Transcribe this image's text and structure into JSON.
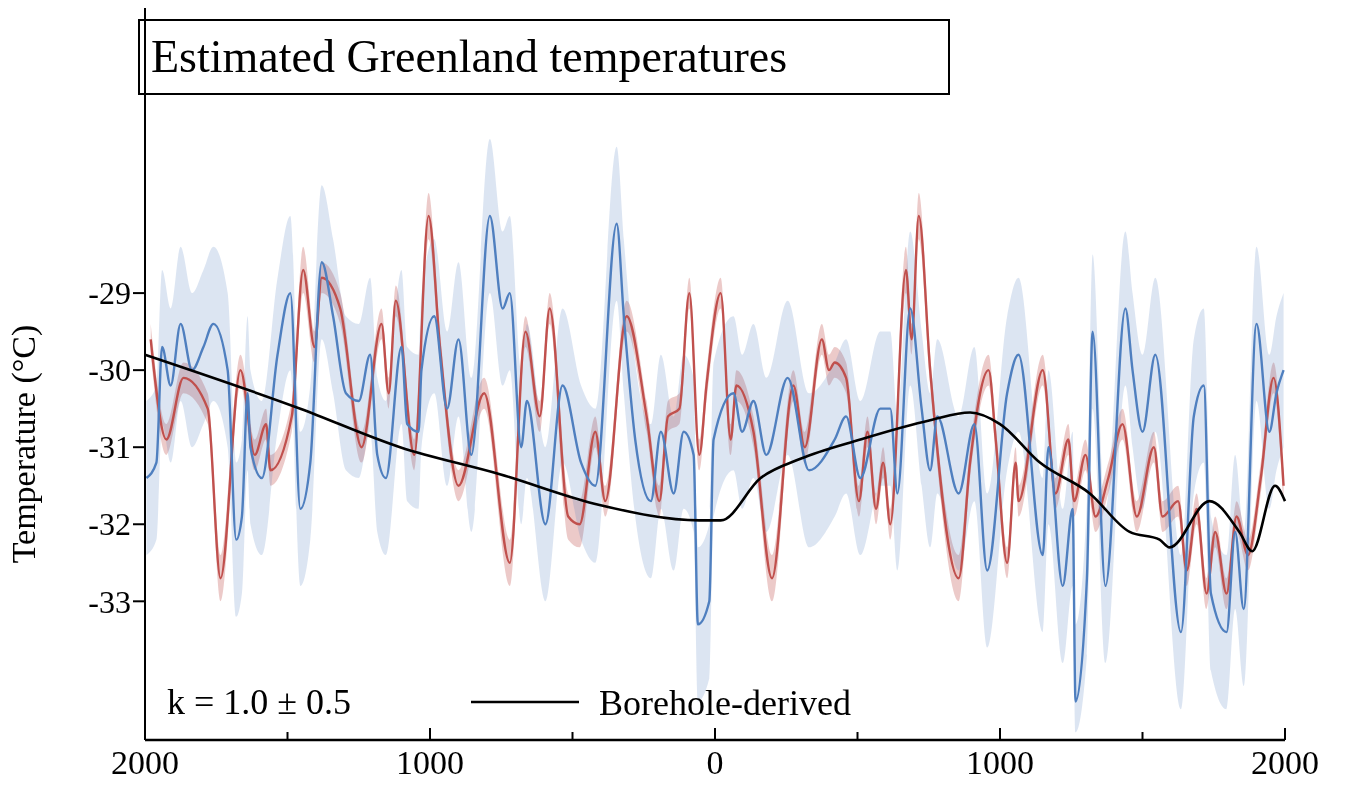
{
  "chart_data": {
    "type": "line",
    "title": "Estimated Greenland temperatures",
    "ylabel": "Temperature (°C)",
    "annotations": [
      "k = 1.0 ± 0.5"
    ],
    "xlim": [
      -2000,
      2000
    ],
    "xticks": [
      {
        "value": -2000,
        "label": "2000"
      },
      {
        "value": -1500,
        "label": null
      },
      {
        "value": -1000,
        "label": "1000"
      },
      {
        "value": -500,
        "label": null
      },
      {
        "value": 0,
        "label": "0"
      },
      {
        "value": 500,
        "label": null
      },
      {
        "value": 1000,
        "label": "1000"
      },
      {
        "value": 1500,
        "label": null
      },
      {
        "value": 2000,
        "label": "2000"
      }
    ],
    "ylim": [
      -34.8,
      -25.3
    ],
    "yticks": [
      -29,
      -30,
      -31,
      -32,
      -33
    ],
    "legend": "bottom",
    "grid": false,
    "series": [
      {
        "color": "#c0504d",
        "x": [
          -1980,
          -1925,
          -1865,
          -1780,
          -1735,
          -1665,
          -1615,
          -1575,
          -1560,
          -1485,
          -1445,
          -1405,
          -1380,
          -1315,
          -1240,
          -1170,
          -1145,
          -1120,
          -1055,
          -1005,
          -965,
          -900,
          -810,
          -720,
          -665,
          -615,
          -580,
          -515,
          -475,
          -420,
          -385,
          -310,
          -240,
          -195,
          -165,
          -125,
          -90,
          -55,
          -30,
          20,
          55,
          75,
          135,
          200,
          275,
          315,
          375,
          400,
          420,
          460,
          505,
          535,
          565,
          590,
          615,
          670,
          690,
          715,
          755,
          855,
          895,
          960,
          985,
          1025,
          1055,
          1065,
          1150,
          1195,
          1240,
          1260,
          1300,
          1335,
          1380,
          1430,
          1480,
          1540,
          1570,
          1625,
          1655,
          1690,
          1725,
          1755,
          1795,
          1830,
          1870,
          1915,
          1960,
          1995
        ],
        "values": [
          -29.6,
          -30.9,
          -30.1,
          -30.5,
          -32.7,
          -30.0,
          -31.1,
          -30.7,
          -31.3,
          -30.6,
          -28.7,
          -29.7,
          -28.8,
          -29.2,
          -31.0,
          -29.4,
          -30.3,
          -29.1,
          -31.1,
          -28.0,
          -29.7,
          -31.5,
          -30.3,
          -32.5,
          -29.5,
          -30.6,
          -29.2,
          -31.9,
          -32.0,
          -30.8,
          -31.7,
          -29.3,
          -30.6,
          -31.7,
          -30.6,
          -30.5,
          -29.0,
          -31.1,
          -30.2,
          -29.0,
          -30.9,
          -30.2,
          -30.8,
          -32.7,
          -30.2,
          -31.0,
          -29.6,
          -30.0,
          -29.9,
          -30.1,
          -31.7,
          -30.8,
          -31.8,
          -31.2,
          -32.0,
          -28.7,
          -29.6,
          -28.0,
          -30.0,
          -32.7,
          -31.2,
          -30.0,
          -30.9,
          -32.5,
          -31.2,
          -31.7,
          -30.0,
          -31.6,
          -30.9,
          -31.7,
          -31.1,
          -31.9,
          -31.4,
          -30.7,
          -31.9,
          -31.0,
          -31.9,
          -31.7,
          -32.6,
          -31.8,
          -32.9,
          -32.1,
          -32.9,
          -31.9,
          -32.4,
          -31.4,
          -30.1,
          -31.5
        ],
        "lower": [
          -29.8,
          -31.1,
          -30.3,
          -30.7,
          -33.0,
          -30.2,
          -31.3,
          -30.9,
          -31.5,
          -30.8,
          -29.0,
          -29.9,
          -29.0,
          -29.4,
          -31.2,
          -29.6,
          -30.5,
          -29.3,
          -31.3,
          -28.3,
          -29.9,
          -31.7,
          -30.5,
          -32.8,
          -29.7,
          -30.8,
          -29.4,
          -32.2,
          -32.3,
          -31.0,
          -31.9,
          -29.5,
          -30.8,
          -31.9,
          -30.8,
          -30.7,
          -29.2,
          -31.3,
          -30.4,
          -29.2,
          -31.1,
          -30.4,
          -31.0,
          -33.0,
          -30.4,
          -31.2,
          -29.8,
          -30.2,
          -30.1,
          -30.3,
          -31.9,
          -31.0,
          -32.0,
          -31.4,
          -32.2,
          -29.0,
          -29.8,
          -28.3,
          -30.2,
          -33.0,
          -31.4,
          -30.2,
          -31.1,
          -32.7,
          -31.4,
          -31.9,
          -30.2,
          -31.8,
          -31.1,
          -31.9,
          -31.3,
          -32.1,
          -31.6,
          -30.9,
          -32.1,
          -31.2,
          -32.1,
          -31.9,
          -32.8,
          -32.0,
          -33.1,
          -32.3,
          -33.1,
          -32.1,
          -32.6,
          -31.6,
          -30.3,
          -31.7
        ],
        "upper": [
          -29.4,
          -30.7,
          -29.9,
          -30.3,
          -32.4,
          -29.8,
          -30.9,
          -30.5,
          -31.1,
          -30.4,
          -28.4,
          -29.5,
          -28.6,
          -29.0,
          -30.8,
          -29.2,
          -30.1,
          -28.9,
          -30.9,
          -27.7,
          -29.5,
          -31.3,
          -30.1,
          -32.2,
          -29.3,
          -30.4,
          -29.0,
          -31.6,
          -31.7,
          -30.6,
          -31.5,
          -29.1,
          -30.4,
          -31.5,
          -30.4,
          -30.3,
          -28.8,
          -30.9,
          -30.0,
          -28.8,
          -30.7,
          -30.0,
          -30.6,
          -32.4,
          -30.0,
          -30.8,
          -29.4,
          -29.8,
          -29.7,
          -29.9,
          -31.5,
          -30.6,
          -31.6,
          -31.0,
          -31.8,
          -28.4,
          -29.4,
          -27.7,
          -29.8,
          -32.4,
          -31.0,
          -29.8,
          -30.7,
          -32.3,
          -31.0,
          -31.5,
          -29.8,
          -31.4,
          -30.7,
          -31.5,
          -30.9,
          -31.7,
          -31.2,
          -30.5,
          -31.7,
          -30.8,
          -31.7,
          -31.5,
          -32.4,
          -31.6,
          -32.7,
          -31.9,
          -32.7,
          -31.7,
          -32.2,
          -31.2,
          -29.9,
          -31.3
        ]
      },
      {
        "color": "#4f7fbf",
        "x": [
          -1995,
          -1960,
          -1940,
          -1910,
          -1875,
          -1835,
          -1795,
          -1760,
          -1710,
          -1680,
          -1660,
          -1640,
          -1630,
          -1590,
          -1535,
          -1490,
          -1455,
          -1420,
          -1380,
          -1340,
          -1295,
          -1250,
          -1210,
          -1185,
          -1155,
          -1100,
          -1080,
          -1040,
          -1030,
          -985,
          -940,
          -900,
          -855,
          -790,
          -745,
          -720,
          -680,
          -660,
          -595,
          -535,
          -470,
          -420,
          -345,
          -320,
          -280,
          -225,
          -190,
          -145,
          -110,
          -75,
          -60,
          -20,
          -5,
          65,
          95,
          135,
          180,
          255,
          330,
          420,
          460,
          510,
          580,
          615,
          640,
          685,
          725,
          755,
          780,
          855,
          910,
          955,
          1025,
          1065,
          1150,
          1170,
          1220,
          1255,
          1265,
          1305,
          1325,
          1370,
          1440,
          1465,
          1500,
          1545,
          1635,
          1680,
          1715,
          1740,
          1795,
          1825,
          1855,
          1900,
          1945,
          1970,
          1995
        ],
        "values": [
          -31.4,
          -31.2,
          -29.7,
          -30.2,
          -29.4,
          -30.0,
          -29.7,
          -29.4,
          -30.0,
          -32.2,
          -31.9,
          -30.3,
          -31.0,
          -31.4,
          -29.8,
          -29.0,
          -31.8,
          -31.2,
          -28.6,
          -29.3,
          -30.3,
          -30.4,
          -29.8,
          -31.1,
          -31.4,
          -29.7,
          -30.7,
          -30.8,
          -30.0,
          -29.3,
          -30.5,
          -29.6,
          -31.1,
          -28.0,
          -29.2,
          -29.0,
          -31.0,
          -30.4,
          -32.0,
          -30.2,
          -31.2,
          -31.5,
          -28.1,
          -29.3,
          -30.9,
          -31.7,
          -30.8,
          -31.6,
          -30.8,
          -31.1,
          -33.3,
          -33.0,
          -30.9,
          -30.3,
          -30.8,
          -30.4,
          -31.1,
          -30.1,
          -31.3,
          -30.9,
          -30.6,
          -31.4,
          -30.5,
          -30.5,
          -31.6,
          -29.2,
          -30.5,
          -31.3,
          -30.6,
          -31.6,
          -30.7,
          -32.6,
          -30.3,
          -29.8,
          -32.4,
          -31.0,
          -32.8,
          -31.8,
          -34.3,
          -32.7,
          -29.5,
          -32.8,
          -29.2,
          -30.0,
          -30.8,
          -29.8,
          -33.4,
          -30.6,
          -30.2,
          -32.9,
          -33.4,
          -32.1,
          -33.1,
          -29.4,
          -30.8,
          -30.3,
          -30.0
        ],
        "lower": [
          -32.4,
          -32.2,
          -30.7,
          -31.2,
          -30.4,
          -31.0,
          -30.7,
          -30.4,
          -31.0,
          -33.2,
          -32.9,
          -31.3,
          -32.0,
          -32.4,
          -30.8,
          -30.0,
          -32.8,
          -32.2,
          -29.6,
          -30.3,
          -31.3,
          -31.4,
          -30.8,
          -32.1,
          -32.4,
          -30.7,
          -31.7,
          -31.8,
          -31.0,
          -30.3,
          -31.5,
          -30.6,
          -32.1,
          -29.0,
          -30.2,
          -30.0,
          -32.0,
          -31.4,
          -33.0,
          -31.2,
          -32.2,
          -32.5,
          -29.1,
          -30.3,
          -31.9,
          -32.7,
          -31.8,
          -32.6,
          -31.8,
          -32.1,
          -34.3,
          -34.0,
          -31.9,
          -31.3,
          -31.8,
          -31.4,
          -32.1,
          -31.1,
          -32.3,
          -31.9,
          -31.6,
          -32.4,
          -31.5,
          -31.5,
          -32.6,
          -30.2,
          -31.5,
          -32.3,
          -31.6,
          -32.6,
          -31.7,
          -33.6,
          -31.3,
          -30.8,
          -33.4,
          -32.0,
          -33.8,
          -32.8,
          -34.7,
          -33.7,
          -30.5,
          -33.8,
          -30.2,
          -31.0,
          -31.8,
          -30.8,
          -34.4,
          -31.6,
          -31.2,
          -33.9,
          -34.4,
          -33.1,
          -34.1,
          -30.4,
          -31.8,
          -31.3,
          -31.0
        ],
        "upper": [
          -30.4,
          -30.2,
          -28.7,
          -29.2,
          -28.4,
          -29.0,
          -28.7,
          -28.4,
          -29.0,
          -31.2,
          -30.9,
          -29.3,
          -30.0,
          -30.4,
          -28.8,
          -28.0,
          -30.8,
          -30.2,
          -27.6,
          -28.3,
          -29.3,
          -29.4,
          -28.8,
          -30.1,
          -30.4,
          -28.7,
          -29.7,
          -29.8,
          -29.0,
          -28.3,
          -29.5,
          -28.6,
          -30.1,
          -27.0,
          -28.2,
          -28.0,
          -30.0,
          -29.4,
          -31.0,
          -29.2,
          -30.2,
          -30.5,
          -27.1,
          -28.3,
          -29.9,
          -30.7,
          -29.8,
          -30.6,
          -29.8,
          -30.1,
          -32.3,
          -32.0,
          -29.9,
          -29.3,
          -29.8,
          -29.4,
          -30.1,
          -29.1,
          -30.3,
          -29.9,
          -29.6,
          -30.4,
          -29.5,
          -29.5,
          -30.6,
          -28.2,
          -29.5,
          -30.3,
          -29.6,
          -30.6,
          -29.7,
          -31.6,
          -29.3,
          -28.8,
          -31.4,
          -30.0,
          -31.8,
          -30.8,
          -33.3,
          -31.7,
          -28.5,
          -31.8,
          -28.2,
          -29.0,
          -29.8,
          -28.8,
          -32.4,
          -29.6,
          -29.2,
          -31.9,
          -32.4,
          -31.1,
          -32.1,
          -28.4,
          -29.8,
          -29.3,
          -29.0
        ]
      },
      {
        "name": "Borehole-derived",
        "color": "#000000",
        "x": [
          -2000,
          -1455,
          -1105,
          -755,
          -405,
          -55,
          20,
          160,
          300,
          510,
          755,
          895,
          1000,
          1140,
          1315,
          1455,
          1560,
          1595,
          1735,
          1840,
          1885,
          1965,
          2000
        ],
        "values": [
          -29.8,
          -30.5,
          -31.0,
          -31.35,
          -31.75,
          -31.95,
          -31.95,
          -31.4,
          -31.15,
          -30.9,
          -30.65,
          -30.55,
          -30.7,
          -31.2,
          -31.6,
          -32.1,
          -32.2,
          -32.3,
          -31.7,
          -32.1,
          -32.35,
          -31.5,
          -31.7
        ]
      }
    ]
  }
}
